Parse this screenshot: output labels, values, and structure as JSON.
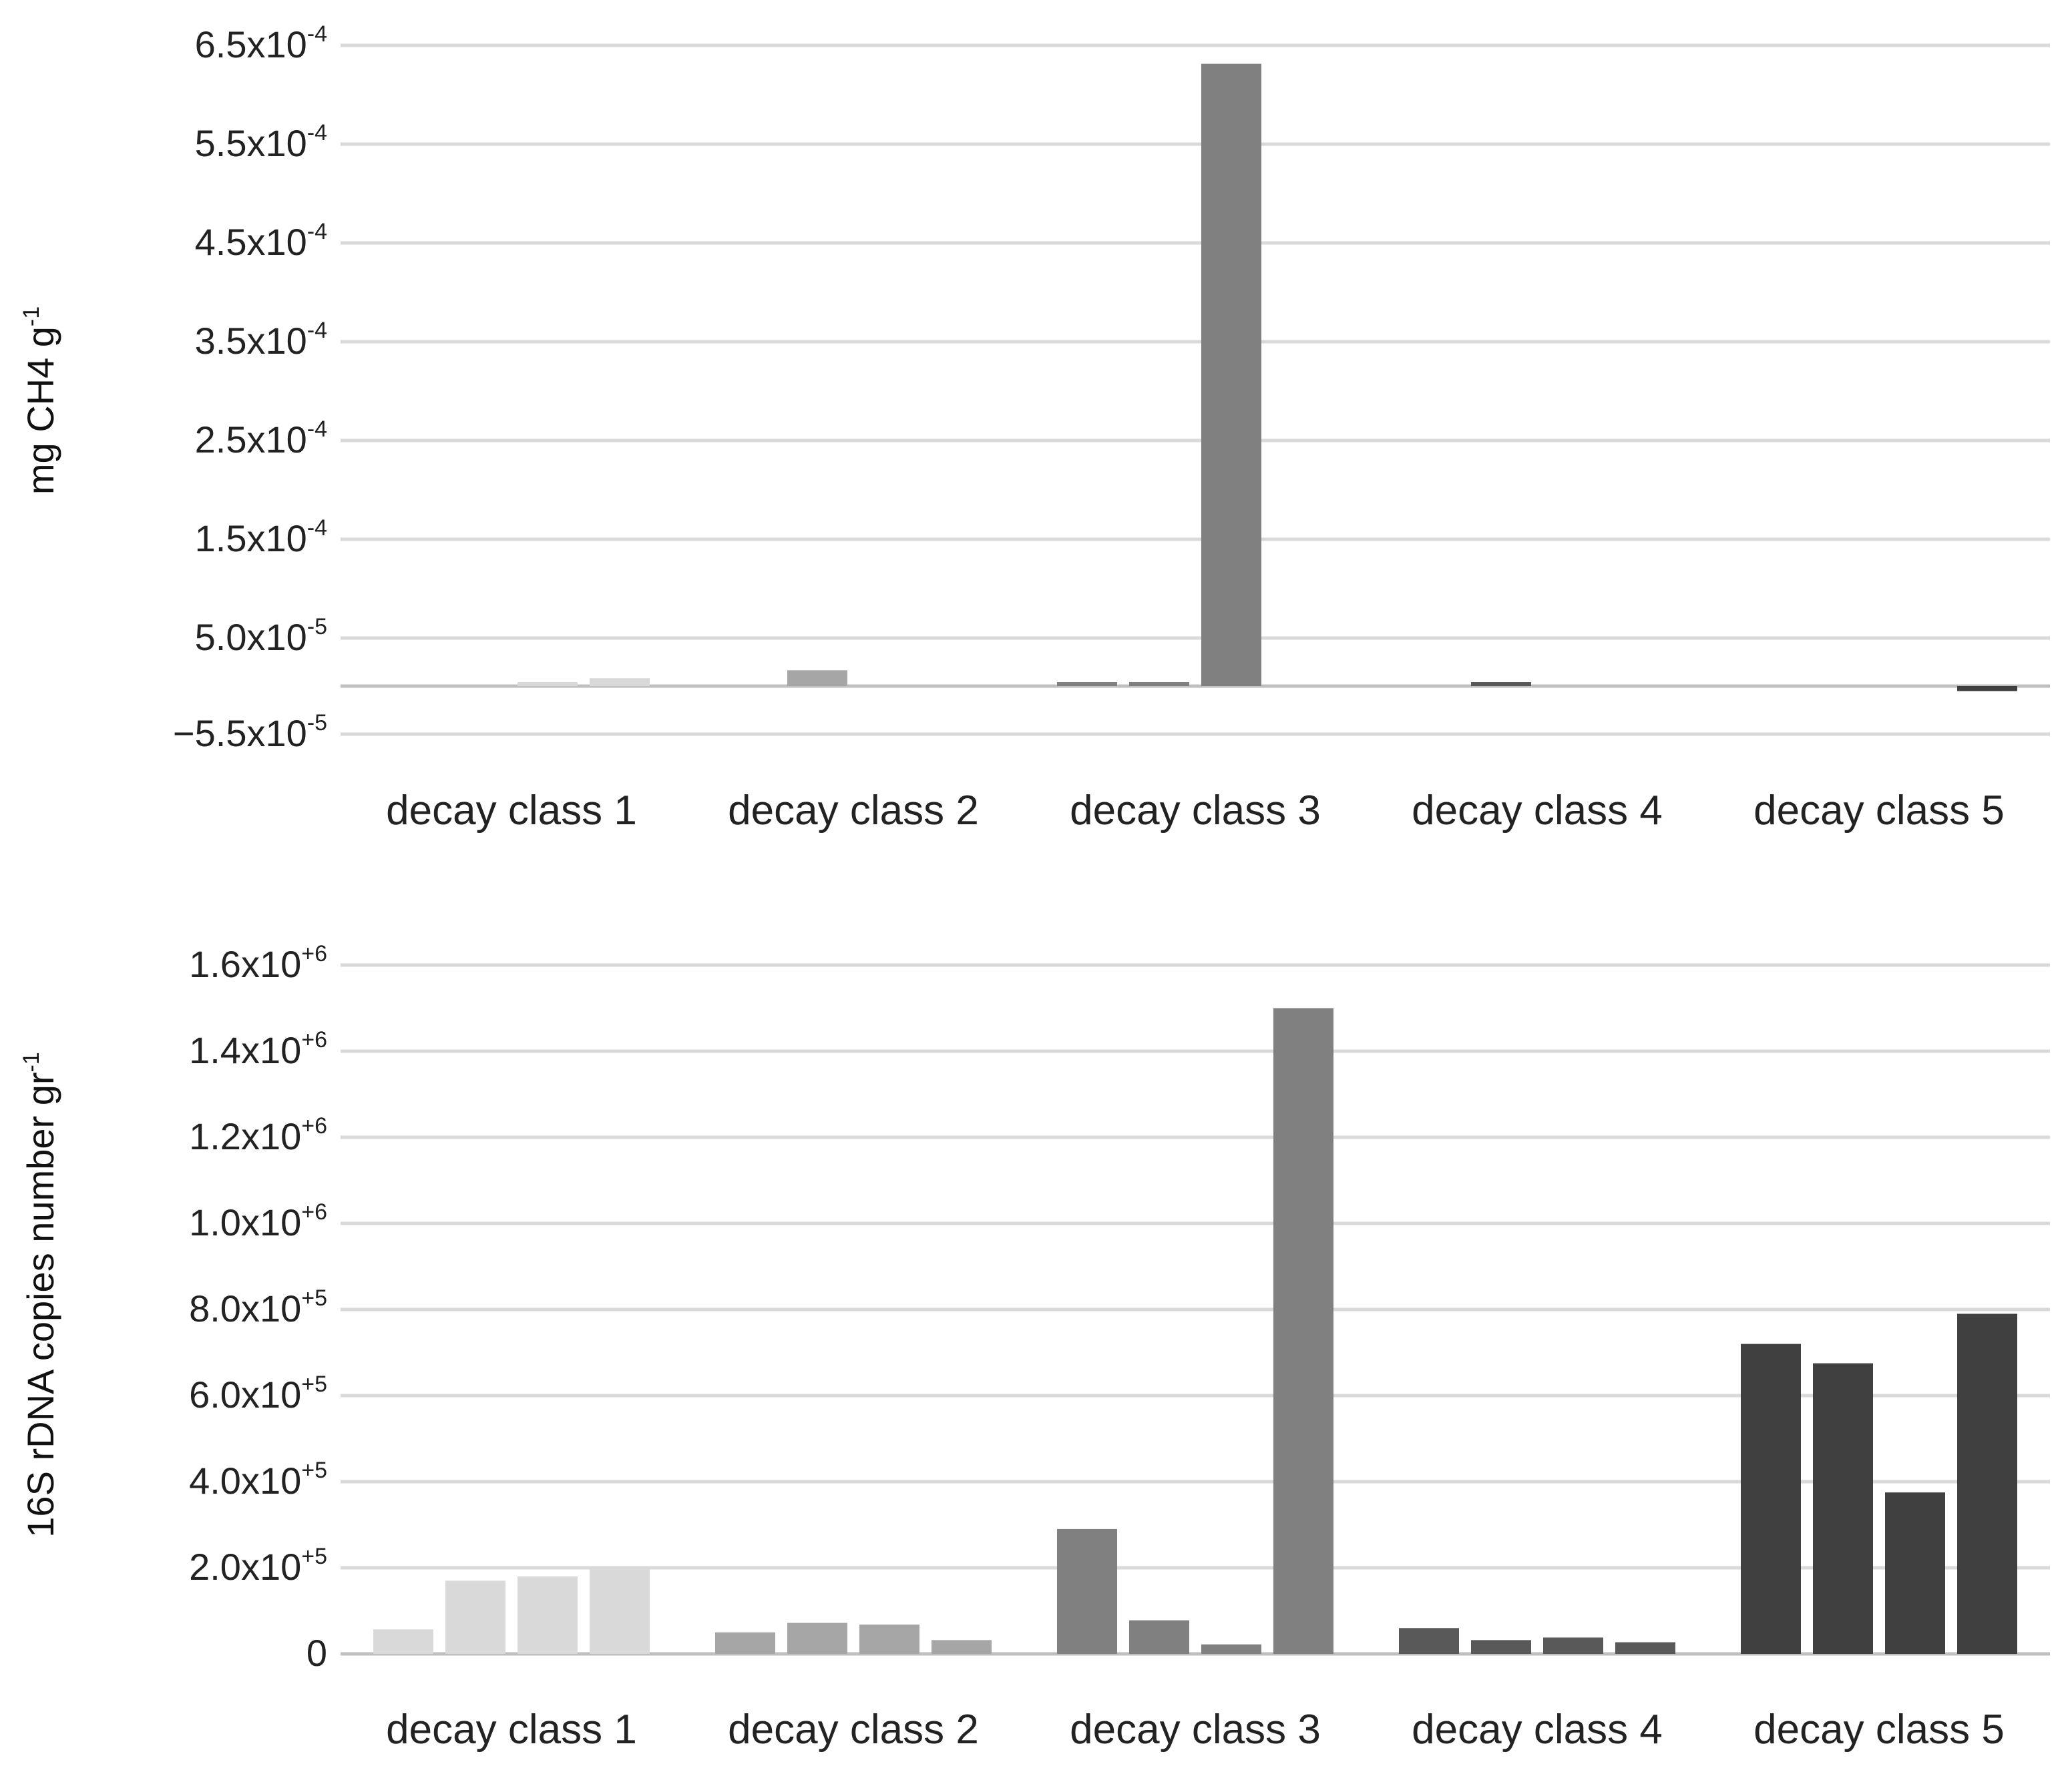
{
  "chart_data": [
    {
      "type": "bar",
      "categories": [
        "decay class 1",
        "decay class 2",
        "decay class 3",
        "decay class 4",
        "decay class 5"
      ],
      "ylabel": {
        "text": "mg CH4 g",
        "sup": "-1"
      },
      "ylim": [
        -5e-05,
        0.00065
      ],
      "ticks": [
        {
          "value": 0.00065,
          "base": "6.5x10",
          "exp": "-4"
        },
        {
          "value": 0.00055,
          "base": "5.5x10",
          "exp": "-4"
        },
        {
          "value": 0.00045,
          "base": "4.5x10",
          "exp": "-4"
        },
        {
          "value": 0.00035,
          "base": "3.5x10",
          "exp": "-4"
        },
        {
          "value": 0.00025,
          "base": "2.5x10",
          "exp": "-4"
        },
        {
          "value": 0.00015,
          "base": "1.5x10",
          "exp": "-4"
        },
        {
          "value": 5e-05,
          "base": "5.0x10",
          "exp": "-5"
        },
        {
          "value": -5.5e-05,
          "base": "−5.5x10",
          "exp": "-5"
        }
      ],
      "grid": true,
      "bar_colors": [
        "#d9d9d9",
        "#a6a6a6",
        "#808080",
        "#595959",
        "#404040"
      ],
      "values": [
        [
          0,
          0,
          3e-06,
          8e-06
        ],
        [
          0,
          1.6e-05,
          0,
          0
        ],
        [
          3e-06,
          3e-06,
          0.00063,
          0
        ],
        [
          0,
          3e-06,
          0,
          0
        ],
        [
          0,
          0,
          0,
          -5e-06
        ]
      ]
    },
    {
      "type": "bar",
      "categories": [
        "decay class 1",
        "decay class 2",
        "decay class 3",
        "decay class 4",
        "decay class 5"
      ],
      "ylabel": {
        "text": "16S rDNA copies number gr",
        "sup": "-1"
      },
      "ylim": [
        0,
        1600000
      ],
      "ticks": [
        {
          "value": 1600000,
          "base": "1.6x10",
          "exp": "+6"
        },
        {
          "value": 1400000,
          "base": "1.4x10",
          "exp": "+6"
        },
        {
          "value": 1200000,
          "base": "1.2x10",
          "exp": "+6"
        },
        {
          "value": 1000000,
          "base": "1.0x10",
          "exp": "+6"
        },
        {
          "value": 800000,
          "base": "8.0x10",
          "exp": "+5"
        },
        {
          "value": 600000,
          "base": "6.0x10",
          "exp": "+5"
        },
        {
          "value": 400000,
          "base": "4.0x10",
          "exp": "+5"
        },
        {
          "value": 200000,
          "base": "2.0x10",
          "exp": "+5"
        },
        {
          "value": 0,
          "base": "0",
          "exp": ""
        }
      ],
      "grid": true,
      "bar_colors": [
        "#d9d9d9",
        "#a6a6a6",
        "#808080",
        "#595959",
        "#404040"
      ],
      "values": [
        [
          57000,
          170000,
          180000,
          200000
        ],
        [
          50000,
          72000,
          68000,
          32000
        ],
        [
          290000,
          78000,
          22000,
          1500000
        ],
        [
          60000,
          32000,
          38000,
          27000
        ],
        [
          720000,
          675000,
          375000,
          790000
        ]
      ]
    }
  ]
}
